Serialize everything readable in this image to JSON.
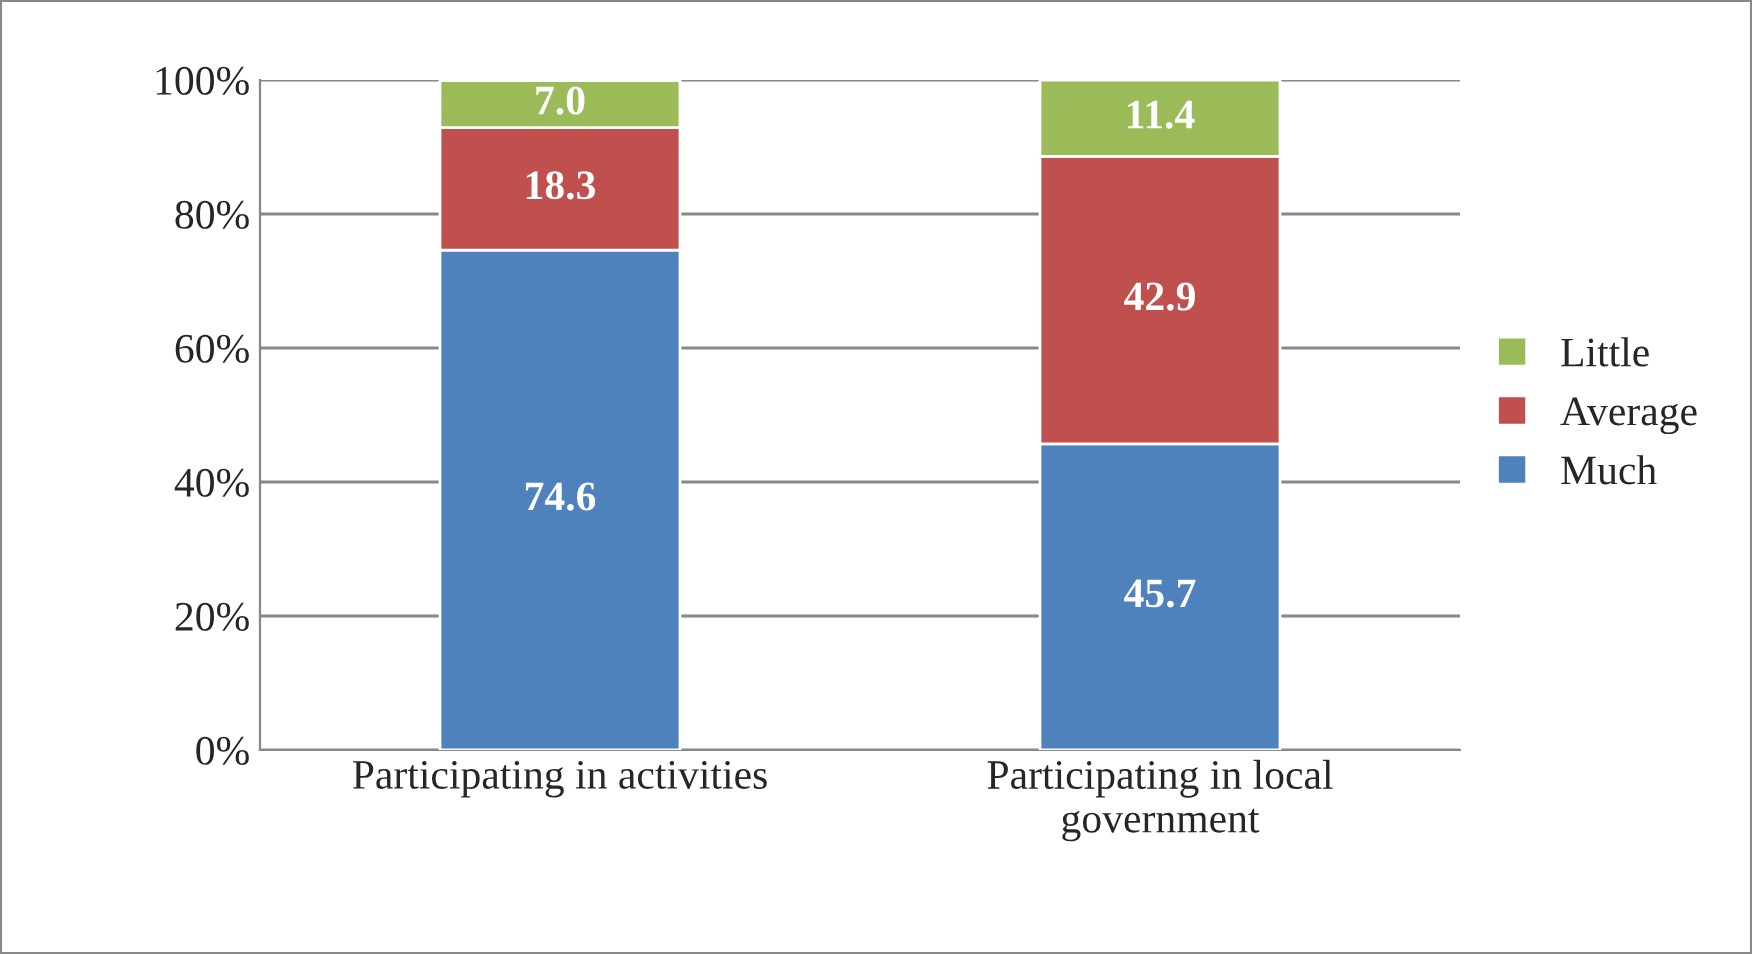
{
  "chart_data": {
    "type": "bar",
    "stacked": true,
    "categories": [
      "Participating in activities",
      "Participating in local\ngovernment"
    ],
    "series": [
      {
        "name": "Much",
        "color": "#4f81bd",
        "values": [
          74.6,
          45.7
        ],
        "value_labels": [
          "74.6",
          "45.7"
        ]
      },
      {
        "name": "Average",
        "color": "#c0504d",
        "values": [
          18.3,
          42.9
        ],
        "value_labels": [
          "18.3",
          "42.9"
        ]
      },
      {
        "name": "Little",
        "color": "#9bbb59",
        "values": [
          7.0,
          11.4
        ],
        "value_labels": [
          "7.0",
          "11.4"
        ]
      }
    ],
    "ylim": [
      0,
      100
    ],
    "yticks": [
      {
        "value": 0,
        "label": "0%"
      },
      {
        "value": 20,
        "label": "20%"
      },
      {
        "value": 40,
        "label": "40%"
      },
      {
        "value": 60,
        "label": "60%"
      },
      {
        "value": 80,
        "label": "80%"
      },
      {
        "value": 100,
        "label": "100%"
      }
    ],
    "grid": "y",
    "legend": "right"
  }
}
